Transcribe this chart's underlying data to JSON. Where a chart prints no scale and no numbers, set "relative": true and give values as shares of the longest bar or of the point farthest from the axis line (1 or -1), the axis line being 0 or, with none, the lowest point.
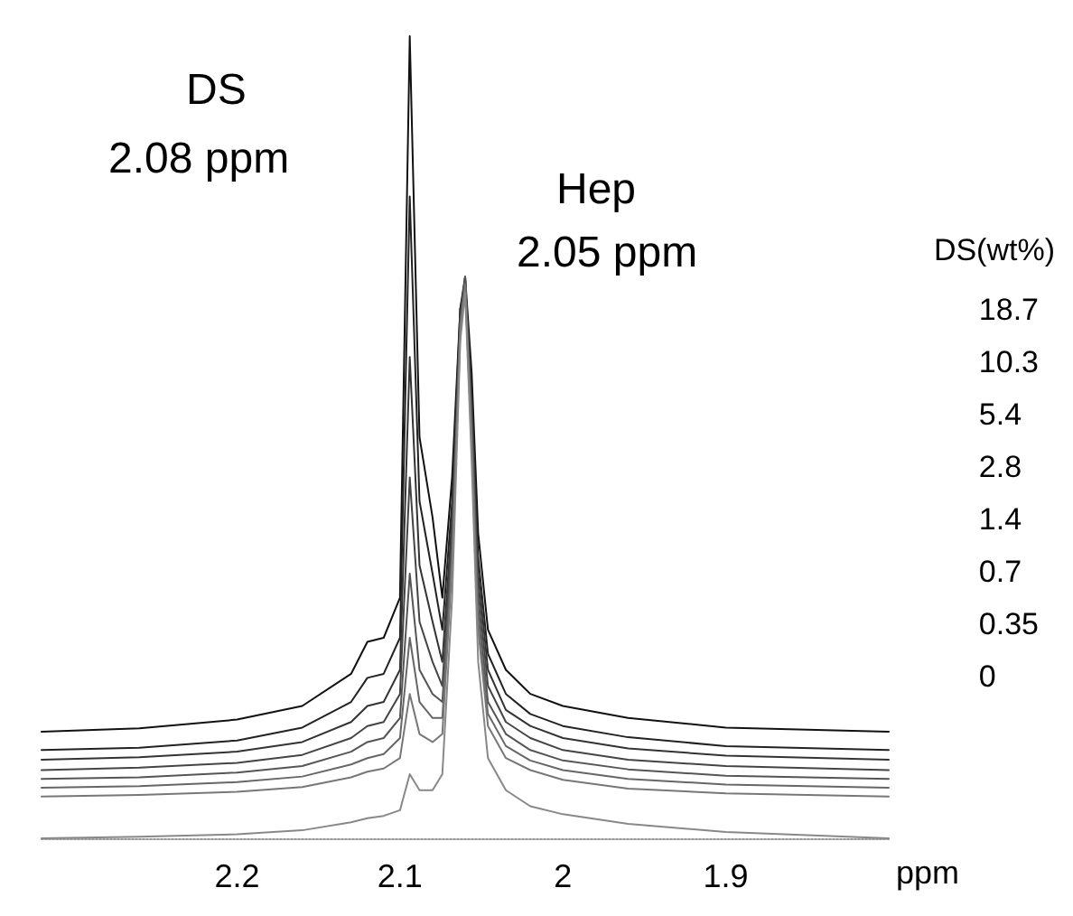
{
  "chart_data": {
    "type": "line",
    "relative": true,
    "xlabel": "ppm",
    "legend_title": "DS(wt%)",
    "legend": "right",
    "tick_labels": "x",
    "grid": false,
    "marker": "none",
    "line_style": "solid",
    "xlim": [
      2.32,
      1.8
    ],
    "xticks": [
      2.2,
      2.1,
      2.0,
      1.9
    ],
    "x": [
      2.32,
      2.26,
      2.2,
      2.16,
      2.13,
      2.12,
      2.11,
      2.1,
      2.094,
      2.088,
      2.08,
      2.074,
      2.068,
      2.063,
      2.06,
      2.056,
      2.052,
      2.046,
      2.035,
      2.02,
      2.0,
      1.96,
      1.9,
      1.8
    ],
    "annotations": [
      "DS",
      "2.08 ppm",
      "Hep",
      "2.05 ppm"
    ],
    "series": [
      {
        "name": "18.7",
        "color": "#111111",
        "values": [
          0.133,
          0.137,
          0.148,
          0.165,
          0.205,
          0.245,
          0.25,
          0.3,
          1.0,
          0.5,
          0.4,
          0.3,
          0.45,
          0.66,
          0.7,
          0.58,
          0.38,
          0.26,
          0.21,
          0.18,
          0.165,
          0.15,
          0.138,
          0.133
        ]
      },
      {
        "name": "10.3",
        "color": "#222222",
        "values": [
          0.11,
          0.113,
          0.122,
          0.138,
          0.17,
          0.2,
          0.205,
          0.25,
          0.8,
          0.42,
          0.33,
          0.26,
          0.42,
          0.66,
          0.69,
          0.55,
          0.35,
          0.23,
          0.18,
          0.155,
          0.14,
          0.126,
          0.115,
          0.11
        ]
      },
      {
        "name": "5.4",
        "color": "#333333",
        "values": [
          0.098,
          0.101,
          0.108,
          0.12,
          0.145,
          0.165,
          0.17,
          0.21,
          0.6,
          0.34,
          0.27,
          0.22,
          0.4,
          0.65,
          0.69,
          0.54,
          0.33,
          0.21,
          0.16,
          0.14,
          0.125,
          0.112,
          0.103,
          0.098
        ]
      },
      {
        "name": "2.8",
        "color": "#444444",
        "values": [
          0.085,
          0.088,
          0.094,
          0.104,
          0.125,
          0.14,
          0.145,
          0.18,
          0.45,
          0.27,
          0.22,
          0.19,
          0.38,
          0.65,
          0.7,
          0.53,
          0.31,
          0.19,
          0.145,
          0.125,
          0.11,
          0.098,
          0.09,
          0.085
        ]
      },
      {
        "name": "1.4",
        "color": "#555555",
        "values": [
          0.074,
          0.076,
          0.082,
          0.09,
          0.108,
          0.12,
          0.125,
          0.15,
          0.33,
          0.21,
          0.18,
          0.17,
          0.36,
          0.64,
          0.7,
          0.52,
          0.29,
          0.17,
          0.13,
          0.11,
          0.097,
          0.086,
          0.078,
          0.074
        ]
      },
      {
        "name": "0.7",
        "color": "#666666",
        "values": [
          0.063,
          0.065,
          0.07,
          0.077,
          0.092,
          0.1,
          0.105,
          0.125,
          0.25,
          0.17,
          0.15,
          0.15,
          0.35,
          0.64,
          0.69,
          0.5,
          0.27,
          0.155,
          0.115,
          0.097,
          0.085,
          0.074,
          0.067,
          0.063
        ]
      },
      {
        "name": "0.35",
        "color": "#777777",
        "values": [
          0.052,
          0.054,
          0.058,
          0.064,
          0.076,
          0.083,
          0.087,
          0.1,
          0.18,
          0.13,
          0.12,
          0.13,
          0.34,
          0.63,
          0.69,
          0.49,
          0.26,
          0.14,
          0.1,
          0.085,
          0.073,
          0.062,
          0.056,
          0.052
        ]
      },
      {
        "name": "0",
        "color": "#888888",
        "values": [
          0,
          0.002,
          0.005,
          0.01,
          0.02,
          0.025,
          0.028,
          0.035,
          0.08,
          0.06,
          0.06,
          0.08,
          0.3,
          0.62,
          0.68,
          0.47,
          0.22,
          0.1,
          0.06,
          0.04,
          0.03,
          0.018,
          0.008,
          0
        ]
      }
    ]
  }
}
